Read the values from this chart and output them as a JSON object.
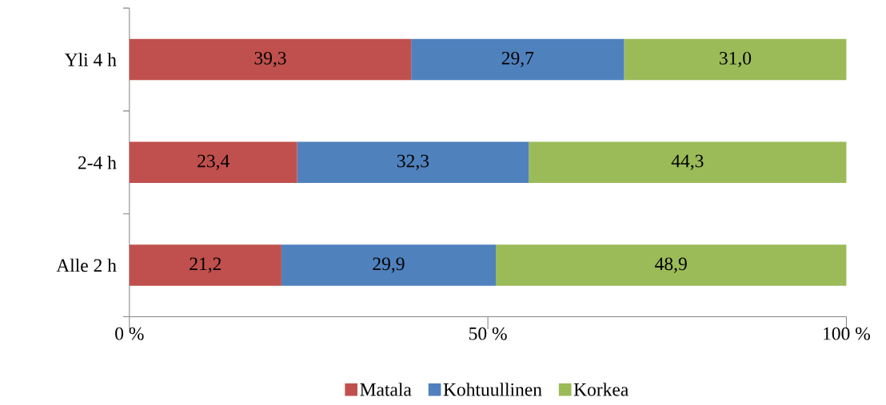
{
  "chart_data": {
    "type": "bar",
    "orientation": "horizontal",
    "stacked": true,
    "categories": [
      "Yli 4 h",
      "2-4 h",
      "Alle 2 h"
    ],
    "series": [
      {
        "name": "Matala",
        "color": "#c0504d",
        "values": [
          39.3,
          23.4,
          21.2
        ],
        "value_labels": [
          "39,3",
          "23,4",
          "21,2"
        ]
      },
      {
        "name": "Kohtuullinen",
        "color": "#4f81bd",
        "values": [
          29.7,
          32.3,
          29.9
        ],
        "value_labels": [
          "29,7",
          "32,3",
          "29,9"
        ]
      },
      {
        "name": "Korkea",
        "color": "#9bbb59",
        "values": [
          31.0,
          44.3,
          48.9
        ],
        "value_labels": [
          "31,0",
          "44,3",
          "48,9"
        ]
      }
    ],
    "xlim": [
      0,
      100
    ],
    "xticks": [
      {
        "value": 0,
        "label": "0 %"
      },
      {
        "value": 50,
        "label": "50 %"
      },
      {
        "value": 100,
        "label": "100 %"
      }
    ],
    "legend": "bottom"
  }
}
